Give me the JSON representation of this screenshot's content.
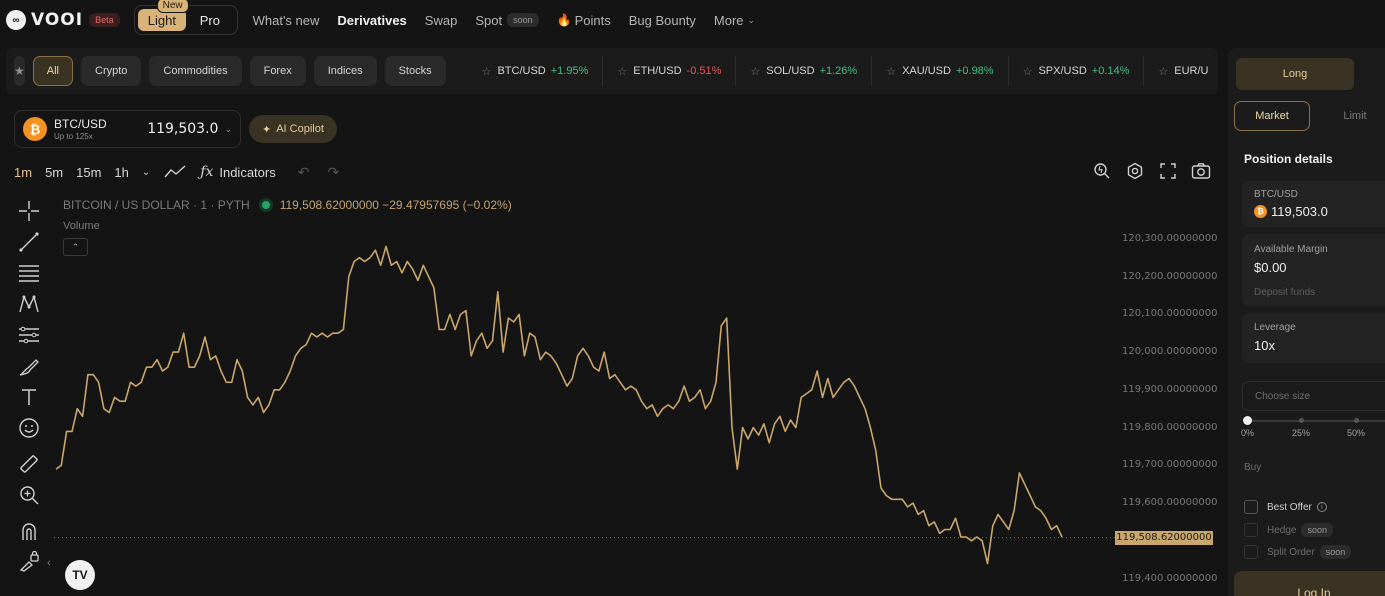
{
  "nav": {
    "brand": "VOOI",
    "beta": "Beta",
    "mode_light": "Light",
    "mode_pro": "Pro",
    "new_badge": "New",
    "links": {
      "whats_new": "What's new",
      "derivatives": "Derivatives",
      "swap": "Swap",
      "spot": "Spot",
      "spot_soon": "soon",
      "points": "Points",
      "bug_bounty": "Bug Bounty",
      "more": "More"
    }
  },
  "filters": {
    "categories": [
      "All",
      "Crypto",
      "Commodities",
      "Forex",
      "Indices",
      "Stocks"
    ],
    "active": "All"
  },
  "tickers": [
    {
      "symbol": "BTC/USD",
      "change": "+1.95%",
      "dir": "up"
    },
    {
      "symbol": "ETH/USD",
      "change": "-0.51%",
      "dir": "down"
    },
    {
      "symbol": "SOL/USD",
      "change": "+1.26%",
      "dir": "up"
    },
    {
      "symbol": "XAU/USD",
      "change": "+0.98%",
      "dir": "up"
    },
    {
      "symbol": "SPX/USD",
      "change": "+0.14%",
      "dir": "up"
    },
    {
      "symbol": "EUR/U",
      "change": "",
      "dir": "up"
    }
  ],
  "symbol": {
    "name": "BTC/USD",
    "leverage_note": "Up to 125x",
    "price": "119,503.0",
    "coin_glyph": "₿",
    "copilot": "AI Copilot"
  },
  "toolbar": {
    "timeframes": [
      "1m",
      "5m",
      "15m",
      "1h"
    ],
    "active_tf": "1m",
    "indicators": "Indicators"
  },
  "chart_legend": {
    "title": "BITCOIN / US DOLLAR · 1 · PYTH",
    "values": "119,508.62000000 −29.47957695 (−0.02%)",
    "volume": "Volume"
  },
  "chart_data": {
    "type": "line",
    "series": [
      {
        "color": "#c9a66b",
        "values": [
          119690,
          119700,
          119790,
          119790,
          119850,
          119830,
          119940,
          119940,
          119920,
          119850,
          119840,
          119880,
          119870,
          119870,
          119920,
          119910,
          119920,
          119960,
          119960,
          119980,
          119950,
          119960,
          120000,
          120000,
          120050,
          119960,
          119960,
          119990,
          120040,
          119980,
          119990,
          119950,
          119920,
          119920,
          119980,
          119950,
          119880,
          119860,
          119880,
          119840,
          119860,
          119900,
          119900,
          119920,
          119950,
          119990,
          120010,
          120020,
          120050,
          120040,
          120050,
          120040,
          120050,
          120050,
          120060,
          120200,
          120240,
          120250,
          120240,
          120250,
          120270,
          120230,
          120280,
          120230,
          120240,
          120210,
          120240,
          120220,
          120190,
          120230,
          120200,
          120170,
          120060,
          120060,
          120100,
          120060,
          120100,
          120110,
          119990,
          120030,
          120050,
          120010,
          120030,
          120160,
          120000,
          120090,
          120080,
          120100,
          119990,
          120050,
          120040,
          119980,
          120000,
          119990,
          119970,
          119940,
          119910,
          119930,
          119990,
          120010,
          119990,
          119960,
          119950,
          120000,
          119930,
          119940,
          119920,
          119900,
          119910,
          119900,
          119870,
          119850,
          119860,
          119830,
          119850,
          119860,
          119850,
          119870,
          119910,
          119870,
          119880,
          119900,
          119850,
          119870,
          119920,
          120070,
          120090,
          119800,
          119690,
          119800,
          119770,
          119800,
          119780,
          119810,
          119760,
          119810,
          119830,
          119790,
          119820,
          119800,
          119880,
          119890,
          119900,
          119950,
          119880,
          119930,
          119880,
          119900,
          119920,
          119930,
          119910,
          119880,
          119850,
          119800,
          119740,
          119640,
          119620,
          119610,
          119610,
          119610,
          119590,
          119600,
          119570,
          119580,
          119540,
          119550,
          119520,
          119530,
          119530,
          119560,
          119510,
          119510,
          119500,
          119510,
          119500,
          119440,
          119540,
          119570,
          119550,
          119530,
          119580,
          119680,
          119650,
          119620,
          119590,
          119580,
          119560,
          119530,
          119540,
          119510
        ]
      }
    ],
    "ylim": [
      119375,
      120350
    ],
    "ytick_labels": [
      "120,300.00000000",
      "120,200.00000000",
      "120,100.00000000",
      "120,000.00000000",
      "119,900.00000000",
      "119,800.00000000",
      "119,700.00000000",
      "119,600.00000000",
      "119,400.00000000"
    ],
    "ytick_values": [
      120300,
      120200,
      120100,
      120000,
      119900,
      119800,
      119700,
      119600,
      119400
    ],
    "last_price_label": "119,508.62000000",
    "last_price": 119508.62,
    "grid": false
  },
  "trade": {
    "long": "Long",
    "market": "Market",
    "limit": "Limit",
    "position_details": "Position details",
    "pair_label": "BTC/USD",
    "pair_price": "119,503.0",
    "available_margin_label": "Available Margin",
    "available_margin": "$0.00",
    "deposit": "Deposit funds",
    "leverage_label": "Leverage",
    "leverage": "10x",
    "size_placeholder": "Choose size",
    "slider_marks": [
      "0%",
      "25%",
      "50%"
    ],
    "buy": "Buy",
    "best_offer": "Best Offer",
    "hedge": "Hedge",
    "hedge_soon": "soon",
    "split_order": "Split Order",
    "split_soon": "soon",
    "login": "Log In"
  }
}
